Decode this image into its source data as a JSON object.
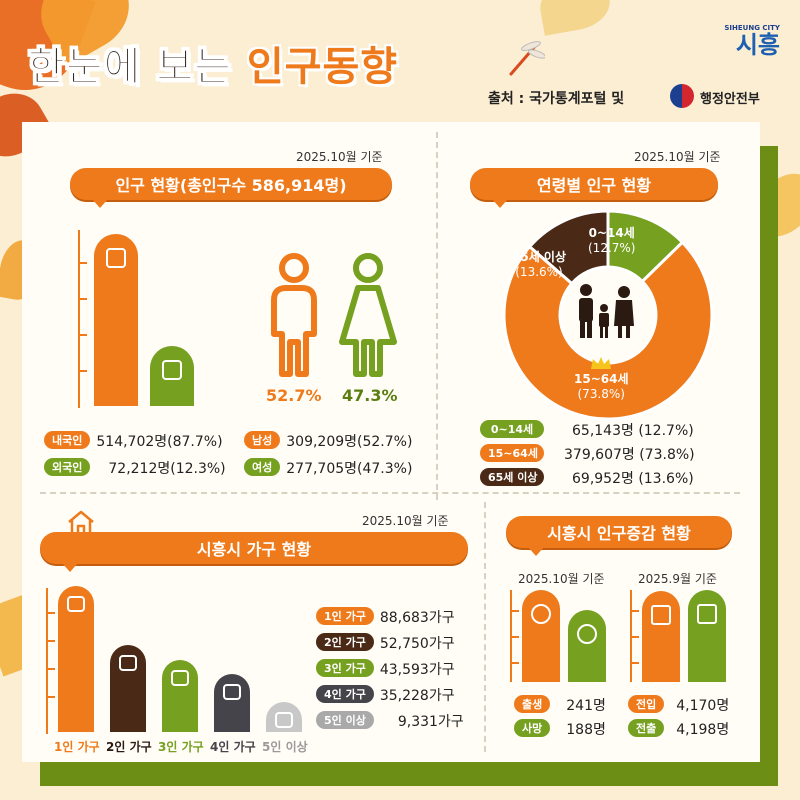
{
  "header": {
    "title_part1": "한눈에 보는",
    "title_part2": "인구동향",
    "source": "출처 : 국가통계포털 및",
    "ministry": "행정안전부",
    "logo_en": "SIHEUNG CITY",
    "logo_kr": "시흥"
  },
  "colors": {
    "orange": "#ee7a1b",
    "green": "#76a020",
    "brown": "#4a2a16",
    "darkgray": "#45444a",
    "lightgray": "#a9a9a9"
  },
  "population": {
    "date": "2025.10월 기준",
    "title": "인구 현황(총인구수 586,914명)",
    "male_pct": "52.7%",
    "female_pct": "47.3%",
    "legend": [
      {
        "label": "내국인",
        "value": "514,702명(87.7%)"
      },
      {
        "label": "외국인",
        "value": "72,212명(12.3%)"
      },
      {
        "label": "남성",
        "value": "309,209명(52.7%)"
      },
      {
        "label": "여성",
        "value": "277,705명(47.3%)"
      }
    ]
  },
  "age": {
    "date": "2025.10월 기준",
    "title": "연령별 인구 현황",
    "slices": [
      {
        "label": "0~14세",
        "pct_text": "(12.7%)"
      },
      {
        "label": "15~64세",
        "pct_text": "(73.8%)"
      },
      {
        "label": "65세 이상",
        "pct_text": "(13.6%)"
      }
    ],
    "legend": [
      {
        "label": "0~14세",
        "value": "65,143명 (12.7%)"
      },
      {
        "label": "15~64세",
        "value": "379,607명 (73.8%)"
      },
      {
        "label": "65세 이상",
        "value": "69,952명 (13.6%)"
      }
    ]
  },
  "household": {
    "date": "2025.10월 기준",
    "title": "시흥시 가구 현황",
    "legend": [
      {
        "label": "1인 가구",
        "value": "88,683가구"
      },
      {
        "label": "2인 가구",
        "value": "52,750가구"
      },
      {
        "label": "3인 가구",
        "value": "43,593가구"
      },
      {
        "label": "4인 가구",
        "value": "35,228가구"
      },
      {
        "label": "5인 이상",
        "value": "9,331가구"
      }
    ]
  },
  "change": {
    "title": "시흥시 인구증감 현황",
    "left_date": "2025.10월 기준",
    "right_date": "2025.9월 기준",
    "legend": [
      {
        "label": "출생",
        "value": "241명"
      },
      {
        "label": "사망",
        "value": "188명"
      },
      {
        "label": "전입",
        "value": "4,170명"
      },
      {
        "label": "전출",
        "value": "4,198명"
      }
    ]
  },
  "chart_data": [
    {
      "type": "bar",
      "title": "인구 현황(총인구수 586,914명)",
      "categories": [
        "내국인",
        "외국인"
      ],
      "values": [
        514702,
        72212
      ]
    },
    {
      "type": "pie",
      "title": "연령별 인구 현황",
      "categories": [
        "0~14세",
        "15~64세",
        "65세 이상"
      ],
      "values": [
        12.7,
        73.8,
        13.6
      ],
      "counts": [
        65143,
        379607,
        69952
      ]
    },
    {
      "type": "bar",
      "title": "시흥시 가구 현황",
      "categories": [
        "1인 가구",
        "2인 가구",
        "3인 가구",
        "4인 가구",
        "5인 이상"
      ],
      "values": [
        88683,
        52750,
        43593,
        35228,
        9331
      ]
    },
    {
      "type": "bar",
      "title": "시흥시 인구증감 현황",
      "categories": [
        "출생",
        "사망",
        "전입",
        "전출"
      ],
      "values": [
        241,
        188,
        4170,
        4198
      ]
    }
  ]
}
